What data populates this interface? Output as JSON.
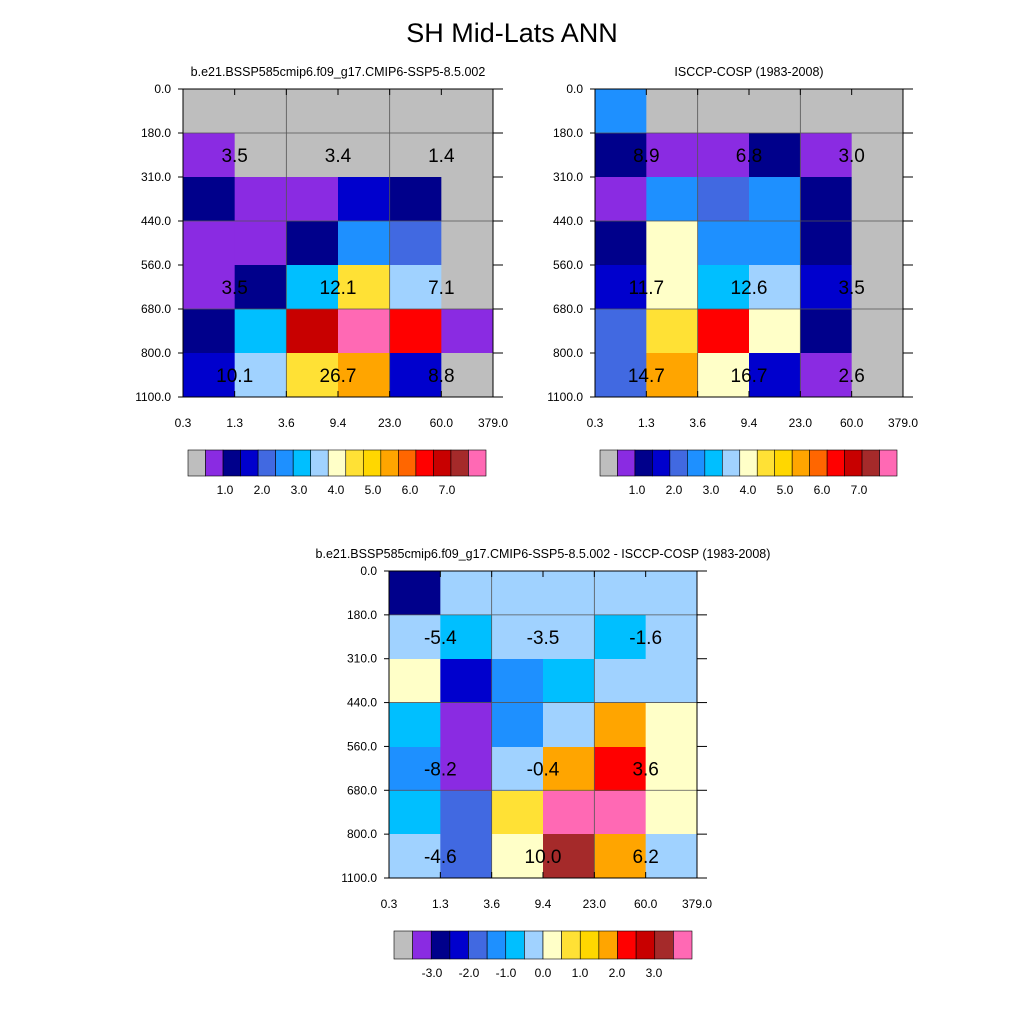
{
  "title": "SH Mid-Lats ANN",
  "colors": {
    "abs_scale": [
      "#bebebe",
      "#8a2be2",
      "#00008b",
      "#0000cd",
      "#4169e1",
      "#1e90ff",
      "#00bfff",
      "#a0d2ff",
      "#ffffc8",
      "#ffe135",
      "#ffd700",
      "#ffa500",
      "#ff6600",
      "#ff0000",
      "#c80000",
      "#a52a2a",
      "#ff69b4"
    ],
    "diff_scale": [
      "#bebebe",
      "#8a2be2",
      "#00008b",
      "#0000cd",
      "#4169e1",
      "#1e90ff",
      "#00bfff",
      "#a0d2ff",
      "#ffffc8",
      "#ffe135",
      "#ffd700",
      "#ffa500",
      "#ff0000",
      "#c80000",
      "#a52a2a",
      "#ff69b4"
    ]
  },
  "chart_data": [
    {
      "type": "heatmap",
      "title": "b.e21.BSSP585cmip6.f09_g17.CMIP6-SSP5-8.5.002",
      "x_ticks": [
        "0.3",
        "1.3",
        "3.6",
        "9.4",
        "23.0",
        "60.0",
        "379.0"
      ],
      "y_ticks": [
        "0.0",
        "180.0",
        "310.0",
        "440.0",
        "560.0",
        "680.0",
        "800.0",
        "1100.0"
      ],
      "cell_colors": [
        [
          "#bebebe",
          "#bebebe",
          "#bebebe",
          "#bebebe",
          "#bebebe",
          "#bebebe"
        ],
        [
          "#8a2be2",
          "#bebebe",
          "#bebebe",
          "#bebebe",
          "#bebebe",
          "#bebebe"
        ],
        [
          "#00008b",
          "#8a2be2",
          "#8a2be2",
          "#0000cd",
          "#00008b",
          "#bebebe"
        ],
        [
          "#8a2be2",
          "#8a2be2",
          "#00008b",
          "#1e90ff",
          "#4169e1",
          "#bebebe"
        ],
        [
          "#8a2be2",
          "#00008b",
          "#00bfff",
          "#ffe135",
          "#a0d2ff",
          "#bebebe"
        ],
        [
          "#00008b",
          "#00bfff",
          "#c80000",
          "#ff69b4",
          "#ff0000",
          "#8a2be2"
        ],
        [
          "#00008b",
          "#00bfff",
          "#c80000",
          "#ff69b4",
          "#ff0000",
          "#8a2be2"
        ],
        [
          "#0000cd",
          "#a0d2ff",
          "#ffe135",
          "#ffa500",
          "#0000cd",
          "#bebebe"
        ]
      ],
      "row_blocks": [
        [
          0,
          1
        ],
        [
          1,
          2
        ],
        [
          2,
          3
        ],
        [
          3,
          4
        ],
        [
          4,
          5
        ],
        [
          5,
          7
        ],
        [
          7,
          8
        ]
      ],
      "block_labels": [
        {
          "row": 1,
          "col": 0,
          "text": "3.5"
        },
        {
          "row": 1,
          "col": 1,
          "text": "3.4"
        },
        {
          "row": 1,
          "col": 2,
          "text": "1.4"
        },
        {
          "row": 4,
          "col": 0,
          "text": "3.5"
        },
        {
          "row": 4,
          "col": 1,
          "text": "12.1"
        },
        {
          "row": 4,
          "col": 2,
          "text": "7.1"
        },
        {
          "row": 6,
          "col": 0,
          "text": "10.1"
        },
        {
          "row": 6,
          "col": 1,
          "text": "26.7"
        },
        {
          "row": 6,
          "col": 2,
          "text": "8.8"
        }
      ],
      "colorbar_labels": [
        "1.0",
        "2.0",
        "3.0",
        "4.0",
        "5.0",
        "6.0",
        "7.0"
      ]
    },
    {
      "type": "heatmap",
      "title": "ISCCP-COSP (1983-2008)",
      "x_ticks": [
        "0.3",
        "1.3",
        "3.6",
        "9.4",
        "23.0",
        "60.0",
        "379.0"
      ],
      "y_ticks": [
        "0.0",
        "180.0",
        "310.0",
        "440.0",
        "560.0",
        "680.0",
        "800.0",
        "1100.0"
      ],
      "cell_colors": [
        [
          "#1e90ff",
          "#bebebe",
          "#bebebe",
          "#bebebe",
          "#bebebe",
          "#bebebe"
        ],
        [
          "#00008b",
          "#8a2be2",
          "#8a2be2",
          "#00008b",
          "#8a2be2",
          "#bebebe"
        ],
        [
          "#8a2be2",
          "#1e90ff",
          "#4169e1",
          "#1e90ff",
          "#00008b",
          "#bebebe"
        ],
        [
          "#00008b",
          "#ffffc8",
          "#1e90ff",
          "#1e90ff",
          "#00008b",
          "#bebebe"
        ],
        [
          "#0000cd",
          "#ffffc8",
          "#00bfff",
          "#a0d2ff",
          "#0000cd",
          "#bebebe"
        ],
        [
          "#4169e1",
          "#ffe135",
          "#ff0000",
          "#ffffc8",
          "#00008b",
          "#bebebe"
        ],
        [
          "#4169e1",
          "#ffa500",
          "#ffffc8",
          "#0000cd",
          "#8a2be2",
          "#bebebe"
        ]
      ],
      "row_blocks": [
        [
          0,
          1
        ],
        [
          1,
          2
        ],
        [
          2,
          3
        ],
        [
          3,
          4
        ],
        [
          4,
          5
        ],
        [
          5,
          6
        ],
        [
          6,
          7
        ]
      ],
      "block_labels": [
        {
          "row": 1,
          "col": 0,
          "text": "8.9"
        },
        {
          "row": 1,
          "col": 1,
          "text": "6.8"
        },
        {
          "row": 1,
          "col": 2,
          "text": "3.0"
        },
        {
          "row": 4,
          "col": 0,
          "text": "11.7"
        },
        {
          "row": 4,
          "col": 1,
          "text": "12.6"
        },
        {
          "row": 4,
          "col": 2,
          "text": "3.5"
        },
        {
          "row": 6,
          "col": 0,
          "text": "14.7"
        },
        {
          "row": 6,
          "col": 1,
          "text": "16.7"
        },
        {
          "row": 6,
          "col": 2,
          "text": "2.6"
        }
      ],
      "colorbar_labels": [
        "1.0",
        "2.0",
        "3.0",
        "4.0",
        "5.0",
        "6.0",
        "7.0"
      ]
    },
    {
      "type": "heatmap",
      "title": "b.e21.BSSP585cmip6.f09_g17.CMIP6-SSP5-8.5.002 - ISCCP-COSP (1983-2008)",
      "x_ticks": [
        "0.3",
        "1.3",
        "3.6",
        "9.4",
        "23.0",
        "60.0",
        "379.0"
      ],
      "y_ticks": [
        "0.0",
        "180.0",
        "310.0",
        "440.0",
        "560.0",
        "680.0",
        "800.0",
        "1100.0"
      ],
      "cell_colors": [
        [
          "#00008b",
          "#a0d2ff",
          "#a0d2ff",
          "#a0d2ff",
          "#a0d2ff",
          "#a0d2ff"
        ],
        [
          "#a0d2ff",
          "#00bfff",
          "#a0d2ff",
          "#a0d2ff",
          "#00bfff",
          "#a0d2ff"
        ],
        [
          "#ffffc8",
          "#0000cd",
          "#1e90ff",
          "#00bfff",
          "#a0d2ff",
          "#a0d2ff"
        ],
        [
          "#00bfff",
          "#8a2be2",
          "#1e90ff",
          "#a0d2ff",
          "#ffa500",
          "#ffffc8"
        ],
        [
          "#1e90ff",
          "#8a2be2",
          "#a0d2ff",
          "#ffa500",
          "#ff0000",
          "#ffffc8"
        ],
        [
          "#00bfff",
          "#4169e1",
          "#ffe135",
          "#ff69b4",
          "#ff69b4",
          "#ffffc8"
        ],
        [
          "#a0d2ff",
          "#4169e1",
          "#ffffc8",
          "#a52a2a",
          "#ffa500",
          "#a0d2ff"
        ]
      ],
      "row_blocks": [
        [
          0,
          1
        ],
        [
          1,
          2
        ],
        [
          2,
          3
        ],
        [
          3,
          4
        ],
        [
          4,
          5
        ],
        [
          5,
          6
        ],
        [
          6,
          7
        ]
      ],
      "block_labels": [
        {
          "row": 1,
          "col": 0,
          "text": "-5.4"
        },
        {
          "row": 1,
          "col": 1,
          "text": "-3.5"
        },
        {
          "row": 1,
          "col": 2,
          "text": "-1.6"
        },
        {
          "row": 4,
          "col": 0,
          "text": "-8.2"
        },
        {
          "row": 4,
          "col": 1,
          "text": "-0.4"
        },
        {
          "row": 4,
          "col": 2,
          "text": "3.6"
        },
        {
          "row": 6,
          "col": 0,
          "text": "-4.6"
        },
        {
          "row": 6,
          "col": 1,
          "text": "10.0"
        },
        {
          "row": 6,
          "col": 2,
          "text": "6.2"
        }
      ],
      "colorbar_labels": [
        "-3.0",
        "-2.0",
        "-1.0",
        "0.0",
        "1.0",
        "2.0",
        "3.0"
      ]
    }
  ]
}
